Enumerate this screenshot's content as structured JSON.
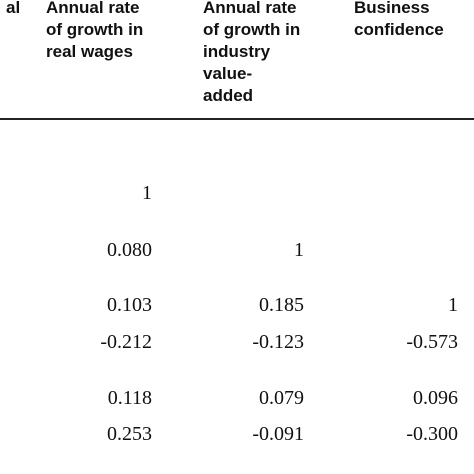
{
  "headers": [
    "al",
    "Annual rate\nof growth in\nreal wages",
    "Annual rate\nof growth in\nindustry\nvalue-\nadded",
    "Business\nconfidence"
  ],
  "rows": [
    [
      "1",
      "",
      ""
    ],
    [
      "0.080",
      "1",
      ""
    ],
    [
      "0.103",
      "0.185",
      "1"
    ],
    [
      "-0.212",
      "-0.123",
      "-0.573"
    ],
    [
      "0.118",
      "0.079",
      "0.096"
    ],
    [
      "0.253",
      "-0.091",
      "-0.300"
    ]
  ]
}
